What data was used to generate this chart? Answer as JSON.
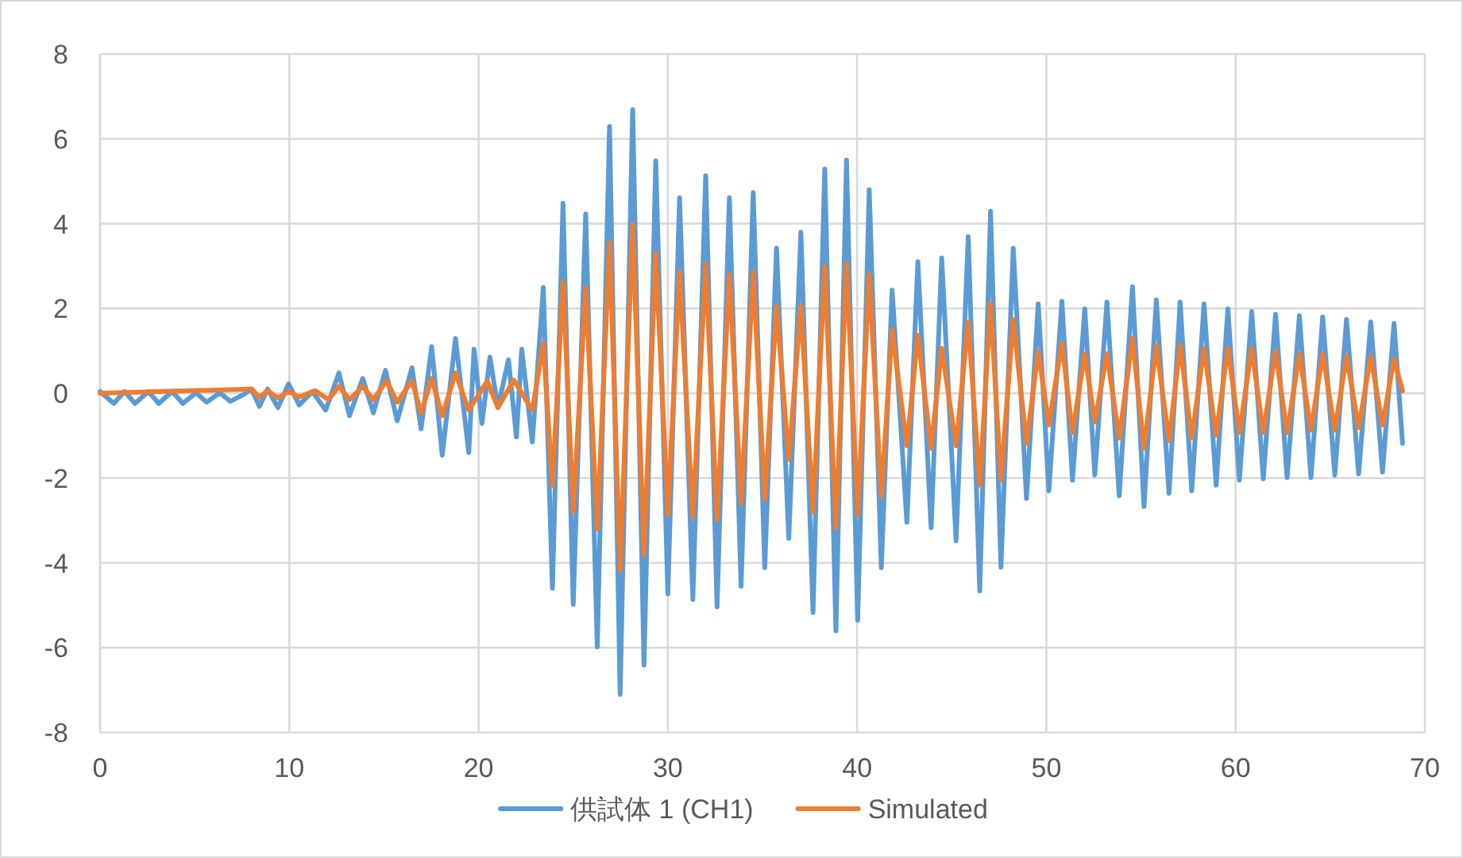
{
  "chart_data": {
    "type": "line",
    "xlim": [
      0,
      70
    ],
    "xticks": [
      0,
      10,
      20,
      30,
      40,
      50,
      60,
      70
    ],
    "ylim": [
      -8,
      8
    ],
    "yticks": [
      -8,
      -6,
      -4,
      -2,
      0,
      2,
      4,
      6,
      8
    ],
    "grid": true,
    "legend": "bottom",
    "line_style": "solid",
    "marker": "none",
    "series": [
      {
        "name": "供試体 1 (CH1)",
        "color": "#5b9bd5",
        "x": [
          0,
          0.73,
          1.29,
          1.85,
          2.55,
          3.1,
          3.81,
          4.37,
          5.07,
          5.63,
          6.33,
          6.88,
          7.58,
          8.0,
          8.42,
          8.85,
          9.4,
          9.96,
          10.52,
          11.22,
          11.92,
          12.62,
          13.18,
          13.88,
          14.44,
          15.08,
          15.7,
          16.48,
          16.96,
          17.52,
          18.08,
          18.78,
          19.48,
          19.76,
          20.18,
          20.6,
          21.02,
          21.58,
          22.0,
          22.28,
          22.84,
          23.42,
          23.9,
          24.46,
          25.0,
          25.66,
          26.27,
          26.92,
          27.48,
          28.14,
          28.74,
          29.36,
          30.0,
          30.62,
          31.32,
          32.0,
          32.6,
          33.25,
          33.87,
          34.51,
          35.12,
          35.74,
          36.39,
          37.03,
          37.67,
          38.29,
          38.88,
          39.44,
          40.03,
          40.64,
          41.28,
          41.85,
          42.63,
          43.21,
          43.91,
          44.47,
          45.23,
          45.87,
          46.48,
          47.05,
          47.6,
          48.25,
          48.95,
          49.57,
          50.13,
          50.82,
          51.38,
          52.03,
          52.56,
          53.2,
          53.85,
          54.55,
          55.16,
          55.81,
          56.48,
          57.07,
          57.68,
          58.33,
          58.97,
          59.59,
          60.2,
          60.85,
          61.46,
          62.11,
          62.72,
          63.37,
          63.98,
          64.6,
          65.24,
          65.86,
          66.5,
          67.14,
          67.76,
          68.37,
          68.82
        ],
        "values": [
          0.04,
          -0.24,
          0.04,
          -0.24,
          0.04,
          -0.24,
          0.04,
          -0.24,
          0.01,
          -0.21,
          0.01,
          -0.19,
          -0.03,
          0.1,
          -0.31,
          0.1,
          -0.34,
          0.22,
          -0.28,
          0.04,
          -0.4,
          0.48,
          -0.53,
          0.35,
          -0.46,
          0.54,
          -0.65,
          0.6,
          -0.84,
          1.1,
          -1.46,
          1.29,
          -1.4,
          1.04,
          -0.71,
          0.85,
          -0.34,
          0.79,
          -1.03,
          1.04,
          -1.15,
          2.49,
          -4.6,
          4.48,
          -4.98,
          4.23,
          -5.98,
          6.29,
          -7.1,
          6.69,
          -6.41,
          5.48,
          -4.73,
          4.61,
          -4.86,
          5.13,
          -5.04,
          4.61,
          -4.55,
          4.73,
          -4.11,
          3.42,
          -3.42,
          3.8,
          -5.17,
          5.29,
          -5.6,
          5.5,
          -5.35,
          4.8,
          -4.11,
          2.43,
          -3.04,
          3.1,
          -3.17,
          3.19,
          -3.48,
          3.69,
          -4.66,
          4.29,
          -4.1,
          3.42,
          -2.48,
          2.11,
          -2.3,
          2.17,
          -2.05,
          1.99,
          -1.93,
          2.15,
          -2.42,
          2.51,
          -2.67,
          2.2,
          -2.36,
          2.15,
          -2.3,
          2.11,
          -2.17,
          1.99,
          -2.05,
          1.93,
          -2.02,
          1.86,
          -1.99,
          1.83,
          -1.99,
          1.8,
          -1.93,
          1.74,
          -1.9,
          1.68,
          -1.86,
          1.65,
          -1.18
        ]
      },
      {
        "name": "Simulated",
        "color": "#ed7d31",
        "x": [
          0,
          8.0,
          8.42,
          8.85,
          9.4,
          9.96,
          10.52,
          11.36,
          12.06,
          12.62,
          13.18,
          13.88,
          14.44,
          15.14,
          15.7,
          16.48,
          16.96,
          17.52,
          18.08,
          18.78,
          19.48,
          20.46,
          21.02,
          21.86,
          22.84,
          23.42,
          23.9,
          24.46,
          25.0,
          25.66,
          26.27,
          26.92,
          27.48,
          28.14,
          28.74,
          29.36,
          30.0,
          30.62,
          31.32,
          32.0,
          32.6,
          33.25,
          33.87,
          34.51,
          35.12,
          35.74,
          36.39,
          37.03,
          37.67,
          38.29,
          38.88,
          39.44,
          40.03,
          40.64,
          41.28,
          41.85,
          42.63,
          43.21,
          43.91,
          44.47,
          45.23,
          45.87,
          46.48,
          47.05,
          47.6,
          48.25,
          48.95,
          49.57,
          50.13,
          50.82,
          51.38,
          52.03,
          52.56,
          53.2,
          53.85,
          54.55,
          55.16,
          55.81,
          56.48,
          57.07,
          57.68,
          58.33,
          58.97,
          59.59,
          60.2,
          60.85,
          61.46,
          62.11,
          62.72,
          63.37,
          63.98,
          64.6,
          65.24,
          65.86,
          66.5,
          67.14,
          67.76,
          68.37,
          68.82
        ],
        "values": [
          0,
          0.1,
          -0.09,
          0.06,
          -0.11,
          0.04,
          -0.09,
          0.06,
          -0.15,
          0.16,
          -0.15,
          0.16,
          -0.15,
          0.29,
          -0.21,
          0.29,
          -0.46,
          0.35,
          -0.53,
          0.48,
          -0.4,
          0.29,
          -0.34,
          0.31,
          -0.4,
          1.18,
          -2.18,
          2.62,
          -2.8,
          2.49,
          -3.2,
          3.55,
          -4.17,
          3.98,
          -3.8,
          3.3,
          -2.86,
          2.86,
          -2.93,
          3.05,
          -2.99,
          2.8,
          -2.6,
          2.86,
          -2.5,
          2.05,
          -1.56,
          2.05,
          -2.8,
          2.99,
          -3.18,
          3.05,
          -2.86,
          2.8,
          -2.43,
          1.49,
          -1.24,
          1.37,
          -1.3,
          1.06,
          -1.24,
          1.68,
          -2.17,
          2.11,
          -2.05,
          1.74,
          -1.18,
          0.99,
          -0.75,
          1.18,
          -0.93,
          0.93,
          -0.68,
          0.93,
          -1.06,
          1.3,
          -1.3,
          1.12,
          -1.12,
          1.12,
          -1.06,
          1.06,
          -0.99,
          1.06,
          -0.93,
          1.06,
          -0.93,
          0.99,
          -0.93,
          0.93,
          -0.87,
          0.93,
          -0.87,
          0.87,
          -0.81,
          0.87,
          -0.75,
          0.81,
          0.06
        ]
      }
    ]
  }
}
